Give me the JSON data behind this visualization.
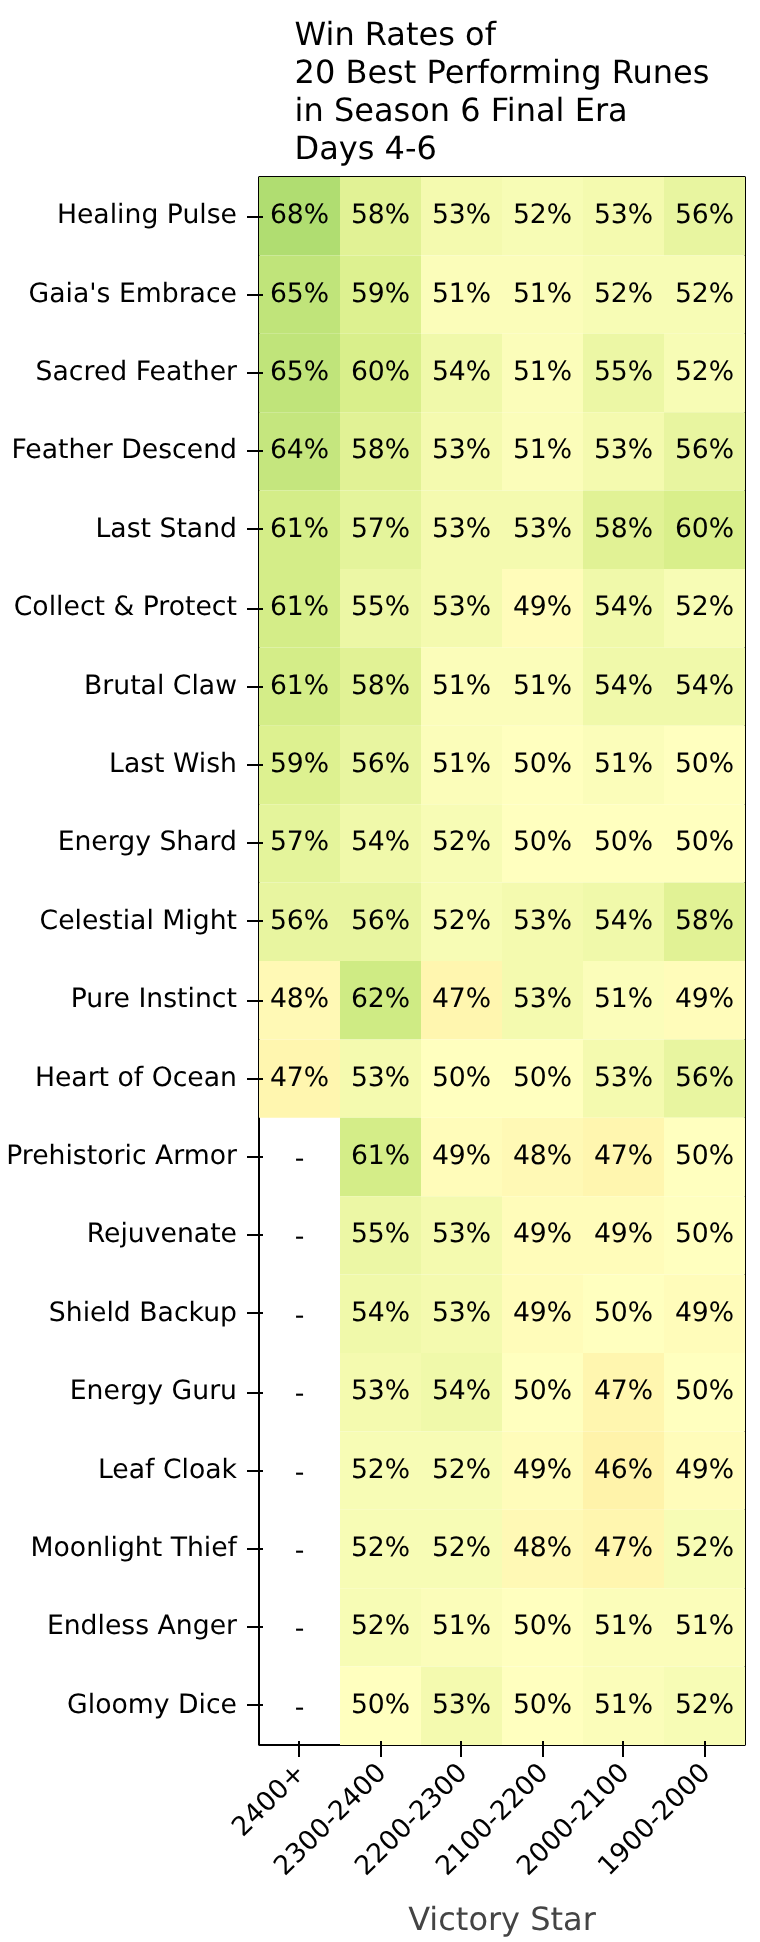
{
  "chart_data": {
    "type": "heatmap",
    "title": "Win Rates of\n20 Best Performing Runes\nin Season 6 Final Era\nDays 4-6",
    "xlabel": "Victory Star",
    "categories": [
      "2400+",
      "2300-2400",
      "2200-2300",
      "2100-2200",
      "2000-2100",
      "1900-2000"
    ],
    "y_categories": [
      "Healing Pulse",
      "Gaia's Embrace",
      "Sacred Feather",
      "Feather Descend",
      "Last Stand",
      "Collect & Protect",
      "Brutal Claw",
      "Last Wish",
      "Energy Shard",
      "Celestial Might",
      "Pure Instinct",
      "Heart of Ocean",
      "Prehistoric Armor",
      "Rejuvenate",
      "Shield Backup",
      "Energy Guru",
      "Leaf Cloak",
      "Moonlight Thief",
      "Endless Anger",
      "Gloomy Dice"
    ],
    "cells": [
      [
        68,
        58,
        53,
        52,
        53,
        56
      ],
      [
        65,
        59,
        51,
        51,
        52,
        52
      ],
      [
        65,
        60,
        54,
        51,
        55,
        52
      ],
      [
        64,
        58,
        53,
        51,
        53,
        56
      ],
      [
        61,
        57,
        53,
        53,
        58,
        60
      ],
      [
        61,
        55,
        53,
        49,
        54,
        52
      ],
      [
        61,
        58,
        51,
        51,
        54,
        54
      ],
      [
        59,
        56,
        51,
        50,
        51,
        50
      ],
      [
        57,
        54,
        52,
        50,
        50,
        50
      ],
      [
        56,
        56,
        52,
        53,
        54,
        58
      ],
      [
        48,
        62,
        47,
        53,
        51,
        49
      ],
      [
        47,
        53,
        50,
        50,
        53,
        56
      ],
      [
        null,
        61,
        49,
        48,
        47,
        50
      ],
      [
        null,
        55,
        53,
        49,
        49,
        50
      ],
      [
        null,
        54,
        53,
        49,
        50,
        49
      ],
      [
        null,
        53,
        54,
        50,
        47,
        50
      ],
      [
        null,
        52,
        52,
        49,
        46,
        49
      ],
      [
        null,
        52,
        52,
        48,
        47,
        52
      ],
      [
        null,
        52,
        51,
        50,
        51,
        51
      ],
      [
        null,
        50,
        53,
        50,
        51,
        52
      ]
    ],
    "cell_labels": [
      [
        "68%",
        "58%",
        "53%",
        "52%",
        "53%",
        "56%"
      ],
      [
        "65%",
        "59%",
        "51%",
        "51%",
        "52%",
        "52%"
      ],
      [
        "65%",
        "60%",
        "54%",
        "51%",
        "55%",
        "52%"
      ],
      [
        "64%",
        "58%",
        "53%",
        "51%",
        "53%",
        "56%"
      ],
      [
        "61%",
        "57%",
        "53%",
        "53%",
        "58%",
        "60%"
      ],
      [
        "61%",
        "55%",
        "53%",
        "49%",
        "54%",
        "52%"
      ],
      [
        "61%",
        "58%",
        "51%",
        "51%",
        "54%",
        "54%"
      ],
      [
        "59%",
        "56%",
        "51%",
        "50%",
        "51%",
        "50%"
      ],
      [
        "57%",
        "54%",
        "52%",
        "50%",
        "50%",
        "50%"
      ],
      [
        "56%",
        "56%",
        "52%",
        "53%",
        "54%",
        "58%"
      ],
      [
        "48%",
        "62%",
        "47%",
        "53%",
        "51%",
        "49%"
      ],
      [
        "47%",
        "53%",
        "50%",
        "50%",
        "53%",
        "56%"
      ],
      [
        "-",
        "61%",
        "49%",
        "48%",
        "47%",
        "50%"
      ],
      [
        "-",
        "55%",
        "53%",
        "49%",
        "49%",
        "50%"
      ],
      [
        "-",
        "54%",
        "53%",
        "49%",
        "50%",
        "49%"
      ],
      [
        "-",
        "53%",
        "54%",
        "50%",
        "47%",
        "50%"
      ],
      [
        "-",
        "52%",
        "52%",
        "49%",
        "46%",
        "49%"
      ],
      [
        "-",
        "52%",
        "52%",
        "48%",
        "47%",
        "52%"
      ],
      [
        "-",
        "52%",
        "51%",
        "50%",
        "51%",
        "51%"
      ],
      [
        "-",
        "50%",
        "53%",
        "50%",
        "51%",
        "52%"
      ]
    ]
  }
}
